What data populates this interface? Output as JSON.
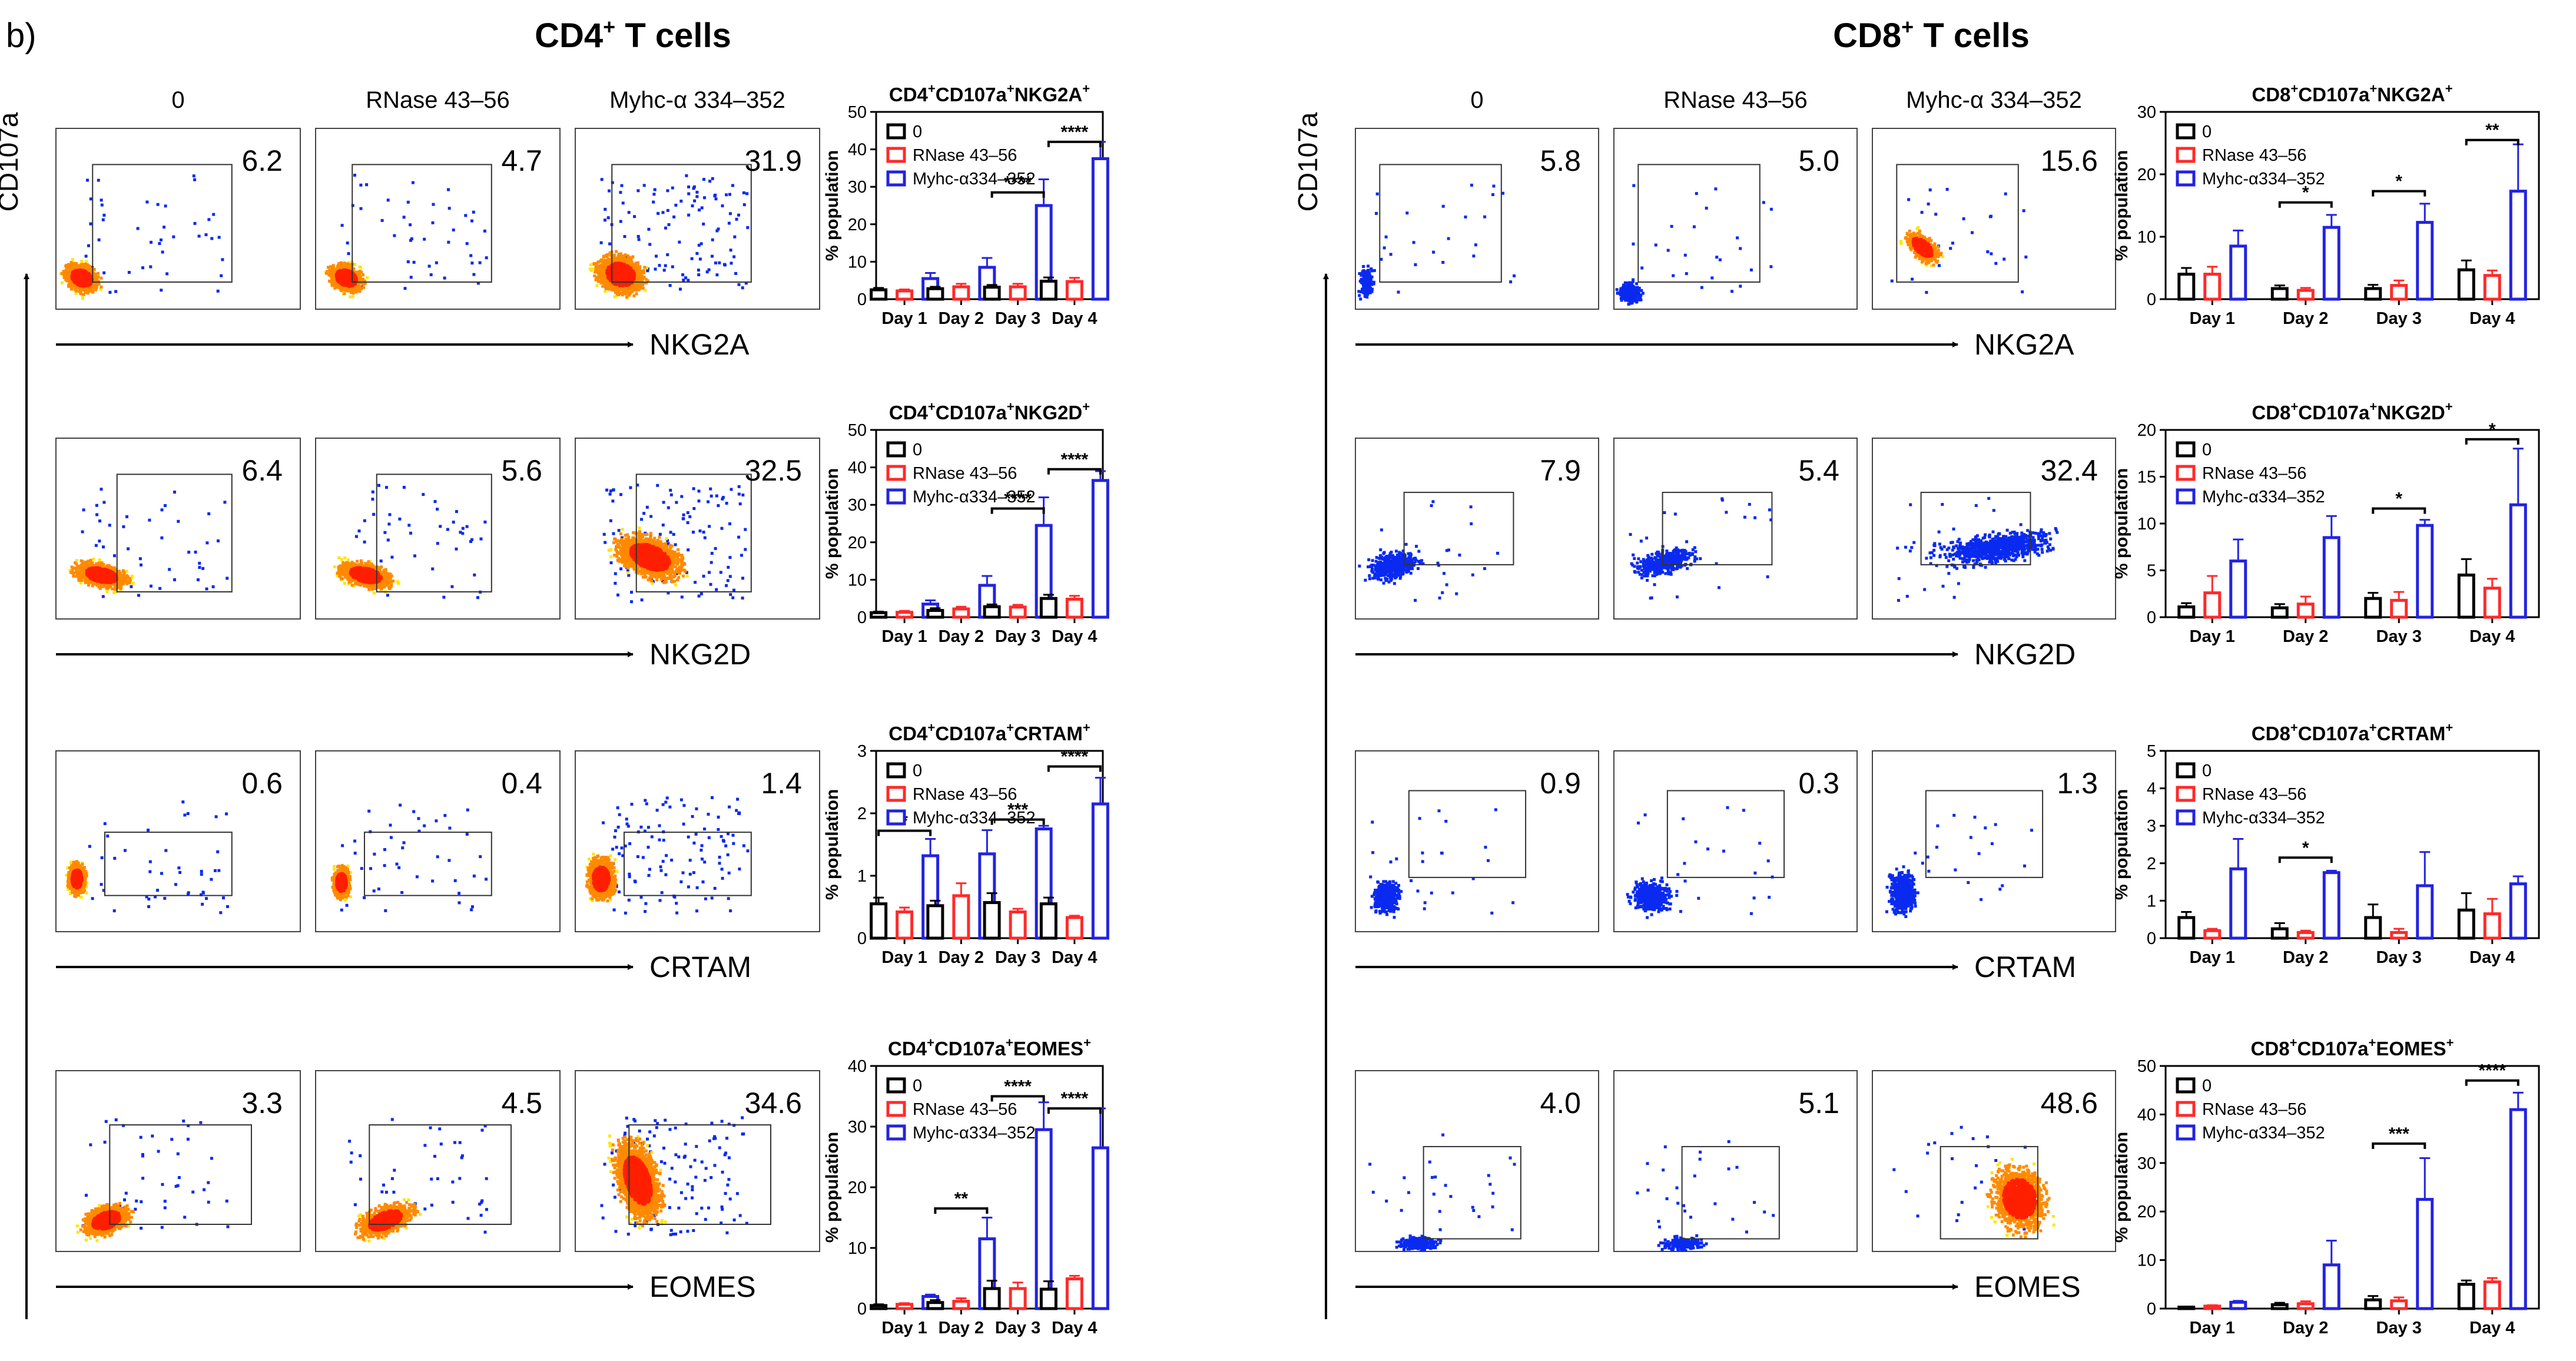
{
  "figure": {
    "panel_label": "b)",
    "sections": [
      {
        "cell": "CD4",
        "sup": "+",
        "rest": " T cells"
      },
      {
        "cell": "CD8",
        "sup": "+",
        "rest": " T cells"
      }
    ],
    "condition_labels": [
      "0",
      "RNase 43–56",
      "Myhc-α 334–352"
    ],
    "y_axis_label": "CD107a",
    "row_markers": [
      "NKG2A",
      "NKG2D",
      "CRTAM",
      "EOMES"
    ],
    "gate_values": {
      "cd4": [
        [
          "6.2",
          "4.7",
          "31.9"
        ],
        [
          "6.4",
          "5.6",
          "32.5"
        ],
        [
          "0.6",
          "0.4",
          "1.4"
        ],
        [
          "3.3",
          "4.5",
          "34.6"
        ]
      ],
      "cd8": [
        [
          "5.8",
          "5.0",
          "15.6"
        ],
        [
          "7.9",
          "5.4",
          "32.4"
        ],
        [
          "0.9",
          "0.3",
          "1.3"
        ],
        [
          "4.0",
          "5.1",
          "48.6"
        ]
      ]
    },
    "colors": {
      "control": "#000000",
      "rnase": "#ff2a2a",
      "myhc": "#2323e0"
    }
  },
  "chart_data": [
    {
      "type": "bar",
      "cell": "CD4",
      "marker": "NKG2A",
      "title": {
        "a": "CD4",
        "b": "CD107a",
        "c": "NKG2A"
      },
      "categories": [
        "Day 1",
        "Day 2",
        "Day 3",
        "Day 4"
      ],
      "ylabel": "% population",
      "ylim": [
        0,
        50
      ],
      "yticks": [
        0,
        10,
        20,
        30,
        40,
        50
      ],
      "legend": [
        "0",
        "RNase 43–56",
        "Myhc-α334–352"
      ],
      "series": [
        {
          "name": "0",
          "values": [
            2.5,
            2.8,
            3.2,
            4.8
          ],
          "err": [
            0.5,
            0.5,
            0.6,
            1.0
          ]
        },
        {
          "name": "RNase 43–56",
          "values": [
            2.2,
            3.3,
            3.3,
            4.7
          ],
          "err": [
            0.4,
            0.8,
            0.8,
            1.0
          ]
        },
        {
          "name": "Myhc-α334–352",
          "values": [
            5.5,
            8.5,
            25,
            37.5
          ],
          "err": [
            1.5,
            2.5,
            7,
            4.5
          ]
        }
      ],
      "significance": [
        {
          "day": 2,
          "label": "****",
          "y": 28.5
        },
        {
          "day": 3,
          "label": "****",
          "y": 42
        }
      ]
    },
    {
      "type": "bar",
      "cell": "CD4",
      "marker": "NKG2D",
      "title": {
        "a": "CD4",
        "b": "CD107a",
        "c": "NKG2D"
      },
      "categories": [
        "Day 1",
        "Day 2",
        "Day 3",
        "Day 4"
      ],
      "ylabel": "% population",
      "ylim": [
        0,
        50
      ],
      "yticks": [
        0,
        10,
        20,
        30,
        40,
        50
      ],
      "legend": [
        "0",
        "RNase 43–56",
        "Myhc-α334–352"
      ],
      "series": [
        {
          "name": "0",
          "values": [
            1.2,
            1.8,
            2.8,
            5.0
          ],
          "err": [
            0.3,
            0.6,
            0.6,
            1.0
          ]
        },
        {
          "name": "RNase 43–56",
          "values": [
            1.3,
            2.2,
            2.7,
            4.8
          ],
          "err": [
            0.4,
            0.6,
            0.6,
            0.9
          ]
        },
        {
          "name": "Myhc-α334–352",
          "values": [
            3.5,
            8.5,
            24.5,
            36.5
          ],
          "err": [
            1.0,
            2.5,
            7.5,
            2.5
          ]
        }
      ],
      "significance": [
        {
          "day": 2,
          "label": "****",
          "y": 29
        },
        {
          "day": 3,
          "label": "****",
          "y": 39.5
        }
      ]
    },
    {
      "type": "bar",
      "cell": "CD4",
      "marker": "CRTAM",
      "title": {
        "a": "CD4",
        "b": "CD107a",
        "c": "CRTAM"
      },
      "categories": [
        "Day 1",
        "Day 2",
        "Day 3",
        "Day 4"
      ],
      "ylabel": "% population",
      "ylim": [
        0,
        3
      ],
      "yticks": [
        0,
        1,
        2,
        3
      ],
      "legend": [
        "0",
        "RNase 43–56",
        "Myhc-α334–352"
      ],
      "series": [
        {
          "name": "0",
          "values": [
            0.55,
            0.52,
            0.57,
            0.55
          ],
          "err": [
            0.1,
            0.08,
            0.15,
            0.1
          ]
        },
        {
          "name": "RNase 43–56",
          "values": [
            0.42,
            0.68,
            0.42,
            0.33
          ],
          "err": [
            0.07,
            0.2,
            0.05,
            0.03
          ]
        },
        {
          "name": "Myhc-α334–352",
          "values": [
            1.32,
            1.35,
            1.75,
            2.15
          ],
          "err": [
            0.27,
            0.38,
            0.05,
            0.42
          ]
        }
      ],
      "significance": [
        {
          "day": 0,
          "label": "*",
          "y": 1.72
        },
        {
          "day": 2,
          "label": "***",
          "y": 1.9
        },
        {
          "day": 3,
          "label": "****",
          "y": 2.75
        }
      ]
    },
    {
      "type": "bar",
      "cell": "CD4",
      "marker": "EOMES",
      "title": {
        "a": "CD4",
        "b": "CD107a",
        "c": "EOMES"
      },
      "categories": [
        "Day 1",
        "Day 2",
        "Day 3",
        "Day 4"
      ],
      "ylabel": "% population",
      "ylim": [
        0,
        40
      ],
      "yticks": [
        0,
        10,
        20,
        30,
        40
      ],
      "legend": [
        "0",
        "RNase 43–56",
        "Myhc-α334–352"
      ],
      "series": [
        {
          "name": "0",
          "values": [
            0.5,
            1.0,
            3.3,
            3.2
          ],
          "err": [
            0.2,
            0.4,
            1.3,
            1.3
          ]
        },
        {
          "name": "RNase 43–56",
          "values": [
            0.7,
            1.2,
            3.3,
            4.9
          ],
          "err": [
            0.2,
            0.5,
            1.0,
            0.5
          ]
        },
        {
          "name": "Myhc-α334–352",
          "values": [
            2.0,
            11.5,
            29.5,
            26.5
          ],
          "err": [
            0.3,
            3.5,
            4.5,
            6.5
          ]
        }
      ],
      "significance": [
        {
          "day": 1,
          "label": "**",
          "y": 16.5
        },
        {
          "day": 2,
          "label": "****",
          "y": 35
        },
        {
          "day": 3,
          "label": "****",
          "y": 33
        }
      ]
    },
    {
      "type": "bar",
      "cell": "CD8",
      "marker": "NKG2A",
      "title": {
        "a": "CD8",
        "b": "CD107a",
        "c": "NKG2A"
      },
      "categories": [
        "Day 1",
        "Day 2",
        "Day 3",
        "Day 4"
      ],
      "ylabel": "% population",
      "ylim": [
        0,
        30
      ],
      "yticks": [
        0,
        10,
        20,
        30
      ],
      "legend": [
        "0",
        "RNase 43–56",
        "Myhc-α334–352"
      ],
      "series": [
        {
          "name": "0",
          "values": [
            4.0,
            1.7,
            1.7,
            4.7
          ],
          "err": [
            1.0,
            0.5,
            0.6,
            1.5
          ]
        },
        {
          "name": "RNase 43–56",
          "values": [
            4.0,
            1.4,
            2.2,
            3.8
          ],
          "err": [
            1.2,
            0.4,
            0.8,
            0.8
          ]
        },
        {
          "name": "Myhc-α334–352",
          "values": [
            8.5,
            11.5,
            12.3,
            17.3
          ],
          "err": [
            2.5,
            2.0,
            3.0,
            7.5
          ]
        }
      ],
      "significance": [
        {
          "day": 1,
          "label": "*",
          "y": 15.5
        },
        {
          "day": 2,
          "label": "*",
          "y": 17.3
        },
        {
          "day": 3,
          "label": "**",
          "y": 25.5
        }
      ]
    },
    {
      "type": "bar",
      "cell": "CD8",
      "marker": "NKG2D",
      "title": {
        "a": "CD8",
        "b": "CD107a",
        "c": "NKG2D"
      },
      "categories": [
        "Day 1",
        "Day 2",
        "Day 3",
        "Day 4"
      ],
      "ylabel": "% population",
      "ylim": [
        0,
        20
      ],
      "yticks": [
        0,
        5,
        10,
        15,
        20
      ],
      "legend": [
        "0",
        "RNase 43–56",
        "Myhc-α334–352"
      ],
      "series": [
        {
          "name": "0",
          "values": [
            1.1,
            1.0,
            2.0,
            4.5
          ],
          "err": [
            0.4,
            0.4,
            0.6,
            1.7
          ]
        },
        {
          "name": "RNase 43–56",
          "values": [
            2.6,
            1.4,
            1.8,
            3.1
          ],
          "err": [
            1.8,
            0.8,
            0.9,
            1.0
          ]
        },
        {
          "name": "Myhc-α334–352",
          "values": [
            6.0,
            8.5,
            9.8,
            12.0
          ],
          "err": [
            2.3,
            2.3,
            0.6,
            6.0
          ]
        }
      ],
      "significance": [
        {
          "day": 2,
          "label": "*",
          "y": 11.6
        },
        {
          "day": 3,
          "label": "*",
          "y": 19
        }
      ]
    },
    {
      "type": "bar",
      "cell": "CD8",
      "marker": "CRTAM",
      "title": {
        "a": "CD8",
        "b": "CD107a",
        "c": "CRTAM"
      },
      "categories": [
        "Day 1",
        "Day 2",
        "Day 3",
        "Day 4"
      ],
      "ylabel": "% population",
      "ylim": [
        0,
        5
      ],
      "yticks": [
        0,
        1,
        2,
        3,
        4,
        5
      ],
      "legend": [
        "0",
        "RNase 43–56",
        "Myhc-α334–352"
      ],
      "series": [
        {
          "name": "0",
          "values": [
            0.55,
            0.25,
            0.55,
            0.75
          ],
          "err": [
            0.15,
            0.15,
            0.35,
            0.45
          ]
        },
        {
          "name": "RNase 43–56",
          "values": [
            0.2,
            0.15,
            0.15,
            0.65
          ],
          "err": [
            0.05,
            0.05,
            0.1,
            0.4
          ]
        },
        {
          "name": "Myhc-α334–352",
          "values": [
            1.85,
            1.75,
            1.4,
            1.45
          ],
          "err": [
            0.8,
            0.05,
            0.9,
            0.2
          ]
        }
      ],
      "significance": [
        {
          "day": 1,
          "label": "*",
          "y": 2.15
        }
      ]
    },
    {
      "type": "bar",
      "cell": "CD8",
      "marker": "EOMES",
      "title": {
        "a": "CD8",
        "b": "CD107a",
        "c": "EOMES"
      },
      "categories": [
        "Day 1",
        "Day 2",
        "Day 3",
        "Day 4"
      ],
      "ylabel": "% population",
      "ylim": [
        0,
        50
      ],
      "yticks": [
        0,
        10,
        20,
        30,
        40,
        50
      ],
      "legend": [
        "0",
        "RNase 43–56",
        "Myhc-α334–352"
      ],
      "series": [
        {
          "name": "0",
          "values": [
            0.3,
            0.8,
            1.8,
            5.0
          ],
          "err": [
            0.1,
            0.4,
            0.8,
            0.8
          ]
        },
        {
          "name": "RNase 43–56",
          "values": [
            0.5,
            1.0,
            1.6,
            5.5
          ],
          "err": [
            0.2,
            0.5,
            0.7,
            0.8
          ]
        },
        {
          "name": "Myhc-α334–352",
          "values": [
            1.3,
            9.0,
            22.5,
            41.0
          ],
          "err": [
            0.3,
            5.0,
            8.5,
            3.5
          ]
        }
      ],
      "significance": [
        {
          "day": 2,
          "label": "***",
          "y": 34
        },
        {
          "day": 3,
          "label": "****",
          "y": 47
        }
      ]
    }
  ]
}
